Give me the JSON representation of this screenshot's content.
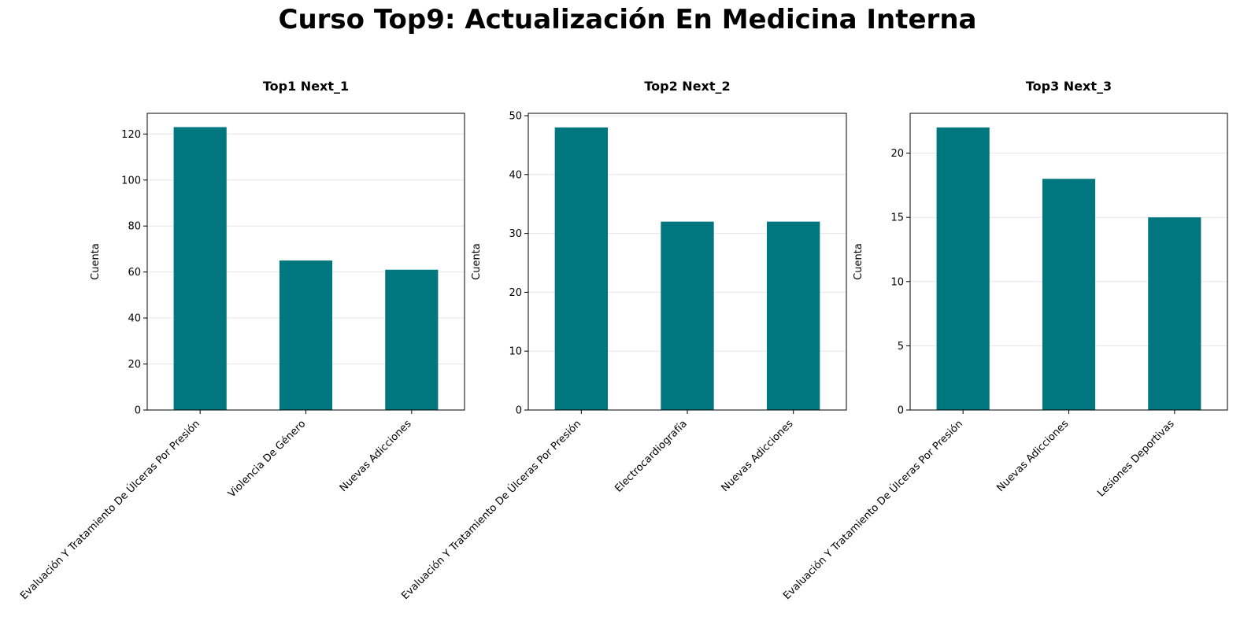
{
  "figure": {
    "title": "Curso Top9: Actualización En Medicina Interna"
  },
  "colors": {
    "bar": "#00767f",
    "grid": "#e6e6e6",
    "axis": "#000000"
  },
  "chart_data": [
    {
      "type": "bar",
      "title": "Top1 Next_1",
      "xlabel": "",
      "ylabel": "Cuenta",
      "categories": [
        "Evaluación Y Tratamiento De Úlceras Por Presión",
        "Violencia De Género",
        "Nuevas Adicciones"
      ],
      "values": [
        123,
        65,
        61
      ],
      "ylim": [
        0,
        129
      ],
      "yticks": [
        0,
        20,
        40,
        60,
        80,
        100,
        120
      ],
      "grid": "y"
    },
    {
      "type": "bar",
      "title": "Top2 Next_2",
      "xlabel": "",
      "ylabel": "Cuenta",
      "categories": [
        "Evaluación Y Tratamiento De Úlceras Por Presión",
        "Electrocardiografía",
        "Nuevas Adicciones"
      ],
      "values": [
        48,
        32,
        32
      ],
      "ylim": [
        0,
        50.4
      ],
      "yticks": [
        0,
        10,
        20,
        30,
        40,
        50
      ],
      "grid": "y"
    },
    {
      "type": "bar",
      "title": "Top3 Next_3",
      "xlabel": "",
      "ylabel": "Cuenta",
      "categories": [
        "Evaluación Y Tratamiento De Úlceras Por Presión",
        "Nuevas Adicciones",
        "Lesiones Deportivas"
      ],
      "values": [
        22,
        18,
        15
      ],
      "ylim": [
        0,
        23.1
      ],
      "yticks": [
        0,
        5,
        10,
        15,
        20
      ],
      "grid": "y"
    }
  ]
}
